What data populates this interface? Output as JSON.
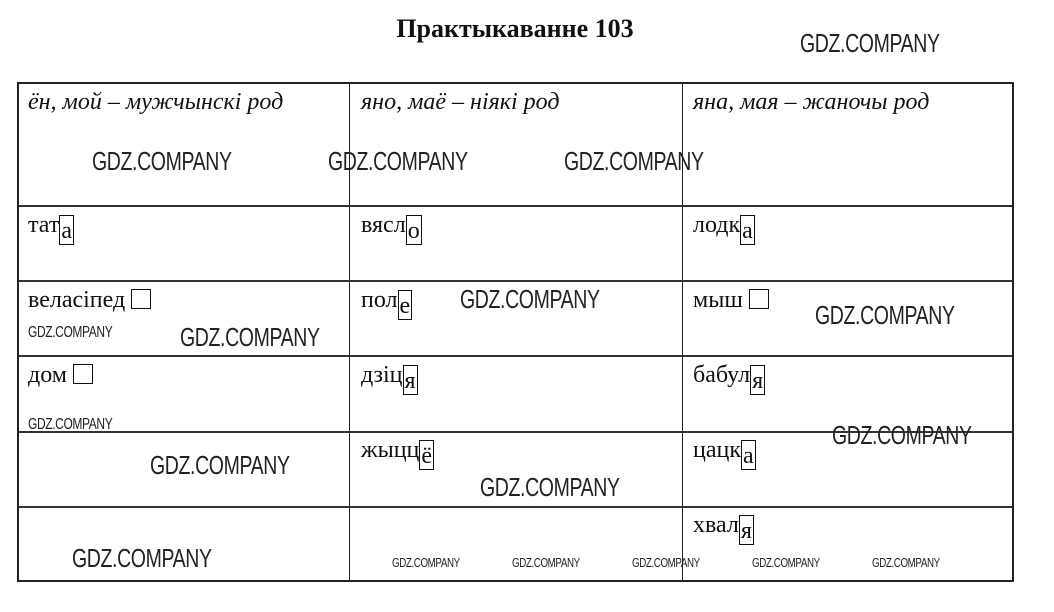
{
  "title": "Практыкаванне 103",
  "table": {
    "headers": [
      "ён, мой – мужчынскі род",
      "яно, маё – ніякі род",
      "яна, мая – жаночы род"
    ],
    "rows": [
      [
        {
          "base": "тат",
          "ending": "а"
        },
        {
          "base": "вясл",
          "ending": "о"
        },
        {
          "base": "лодк",
          "ending": "а"
        }
      ],
      [
        {
          "base": "веласіпед",
          "ending": ""
        },
        {
          "base": "пол",
          "ending": "е"
        },
        {
          "base": "мыш",
          "ending": ""
        }
      ],
      [
        {
          "base": "дом",
          "ending": ""
        },
        {
          "base": "дзіц",
          "ending": "я"
        },
        {
          "base": "бабул",
          "ending": "я"
        }
      ],
      [
        null,
        {
          "base": "жыцц",
          "ending": "ё"
        },
        {
          "base": "цацк",
          "ending": "а"
        }
      ],
      [
        null,
        null,
        {
          "base": "хвал",
          "ending": "я"
        }
      ]
    ]
  },
  "watermark": "GDZ.COMPANY"
}
